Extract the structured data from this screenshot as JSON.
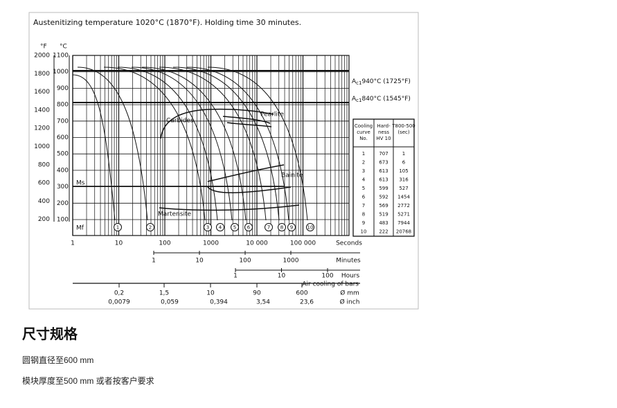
{
  "diagram": {
    "title": "Austenitizing temperature 1020°C (1870°F). Holding time 30 minutes.",
    "unit_f": "°F",
    "unit_c": "°C",
    "f_ticks": [
      "2000",
      "1800",
      "1600",
      "1400",
      "1200",
      "1000",
      "800",
      "600",
      "400",
      "200"
    ],
    "c_ticks": [
      "1100",
      "1000",
      "900",
      "800",
      "700",
      "600",
      "500",
      "400",
      "300",
      "200",
      "100"
    ],
    "ac_upper": {
      "a": "A",
      "sub": "c1",
      "rest": "940°C (1725°F)"
    },
    "ac_lower": {
      "a": "A",
      "sub": "c1",
      "rest": "840°C (1545°F)"
    },
    "regions": {
      "carbides": "Carbides",
      "pearlite": "Pearlite",
      "bainite": "Bainite",
      "martensite": "Martensite",
      "ms": "Ms",
      "mf": "Mf"
    },
    "curve_numbers": [
      "1",
      "2",
      "3",
      "4",
      "5",
      "6",
      "7",
      "8",
      "9",
      "10"
    ],
    "seconds": [
      "1",
      "10",
      "100",
      "1000",
      "10 000",
      "100 000"
    ],
    "seconds_label": "Seconds",
    "minutes": [
      "1",
      "10",
      "100",
      "1000"
    ],
    "minutes_label": "Minutes",
    "hours": [
      "1",
      "10",
      "100"
    ],
    "hours_label": "Hours",
    "air_cooling": "Air cooling of bars",
    "mm": [
      "0,2",
      "1,5",
      "10",
      "90",
      "600"
    ],
    "mm_label": "Ø mm",
    "inch": [
      "0,0079",
      "0,059",
      "0,394",
      "3,54",
      "23,6"
    ],
    "inch_label": "Ø inch",
    "table": {
      "header": [
        [
          "Cooling",
          "curve",
          "No."
        ],
        [
          "Hard-",
          "ness",
          "HV 10"
        ],
        [
          "T800-500",
          "(sec)"
        ]
      ],
      "rows": [
        [
          "1",
          "707",
          "1"
        ],
        [
          "2",
          "673",
          "6"
        ],
        [
          "3",
          "613",
          "105"
        ],
        [
          "4",
          "613",
          "316"
        ],
        [
          "5",
          "599",
          "527"
        ],
        [
          "6",
          "592",
          "1454"
        ],
        [
          "7",
          "569",
          "2772"
        ],
        [
          "8",
          "519",
          "5271"
        ],
        [
          "9",
          "483",
          "7944"
        ],
        [
          "10",
          "222",
          "20768"
        ]
      ]
    }
  },
  "section": {
    "heading": "尺寸规格",
    "lines": [
      "圆钢直径至600 mm",
      "模块厚度至500 mm 或者按客户要求"
    ]
  }
}
